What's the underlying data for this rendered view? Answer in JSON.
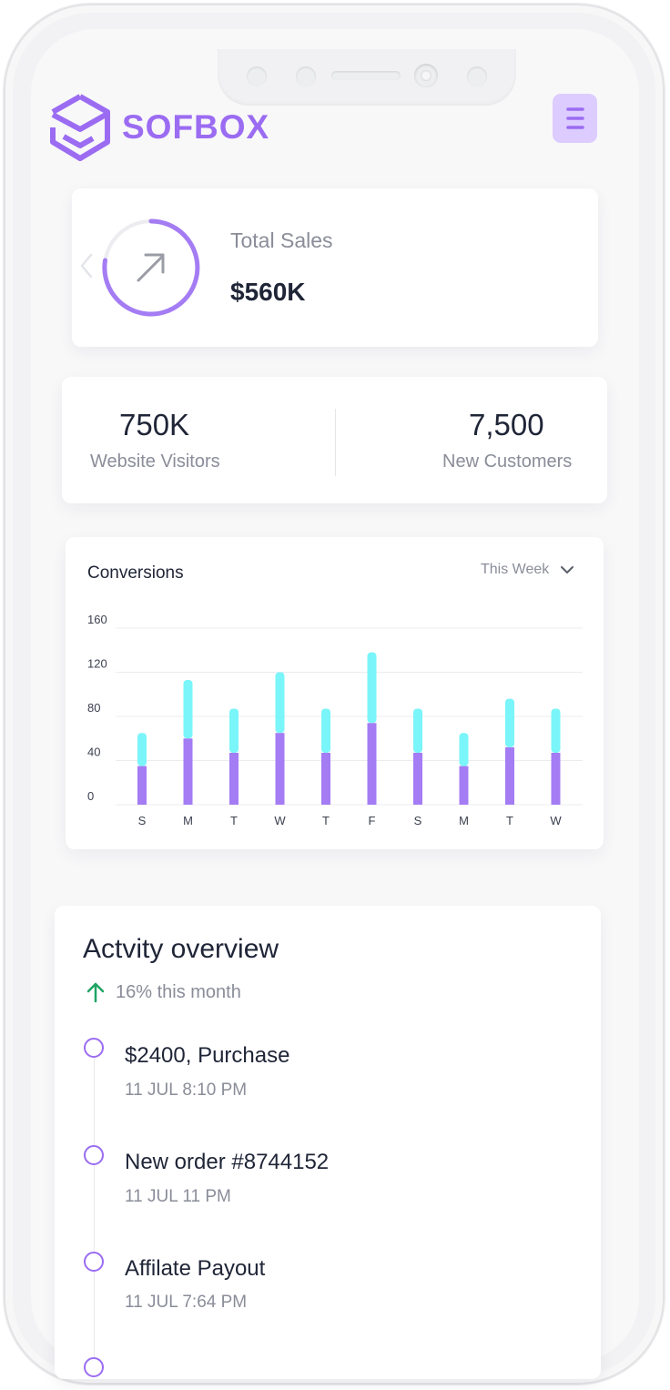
{
  "brand": {
    "name": "SOFBOX",
    "logo_icon": "cube-logo-icon",
    "accent": "#9b6cf2"
  },
  "header": {
    "menu_icon": "hamburger-menu-icon",
    "menu_bg": "#dcccff"
  },
  "total_sales": {
    "title": "Total Sales",
    "value": "$560K",
    "icon": "arrow-up-right-icon",
    "nav_icon": "chevron-left-icon"
  },
  "stats": [
    {
      "value": "750K",
      "label": "Website Visitors"
    },
    {
      "value": "7,500",
      "label": "New Customers"
    }
  ],
  "conversions": {
    "title": "Conversions",
    "range": "This Week",
    "range_icon": "chevron-down-icon"
  },
  "chart_data": {
    "type": "bar",
    "categories": [
      "S",
      "M",
      "T",
      "W",
      "T",
      "F",
      "S",
      "M",
      "T",
      "W"
    ],
    "series": [
      {
        "values": [
          35,
          60,
          47,
          65,
          47,
          74,
          47,
          35,
          52,
          47
        ],
        "color": "#a47cf3"
      },
      {
        "values": [
          30,
          53,
          40,
          55,
          40,
          64,
          40,
          30,
          44,
          40
        ],
        "color": "#7af5f9"
      }
    ],
    "stacked": true,
    "yticks": [
      0,
      40,
      80,
      120,
      160
    ],
    "ylim": [
      0,
      160
    ],
    "grid": true,
    "legend": "none"
  },
  "activity": {
    "title": "Actvity overview",
    "trend_icon": "arrow-up-icon",
    "trend_color": "#1fa463",
    "trend_text": "16% this month",
    "items": [
      {
        "title": "$2400, Purchase",
        "time": "11 JUL 8:10 PM"
      },
      {
        "title": "New order #8744152",
        "time": "11 JUL 11 PM"
      },
      {
        "title": "Affilate Payout",
        "time": "11 JUL 7:64 PM"
      }
    ]
  }
}
